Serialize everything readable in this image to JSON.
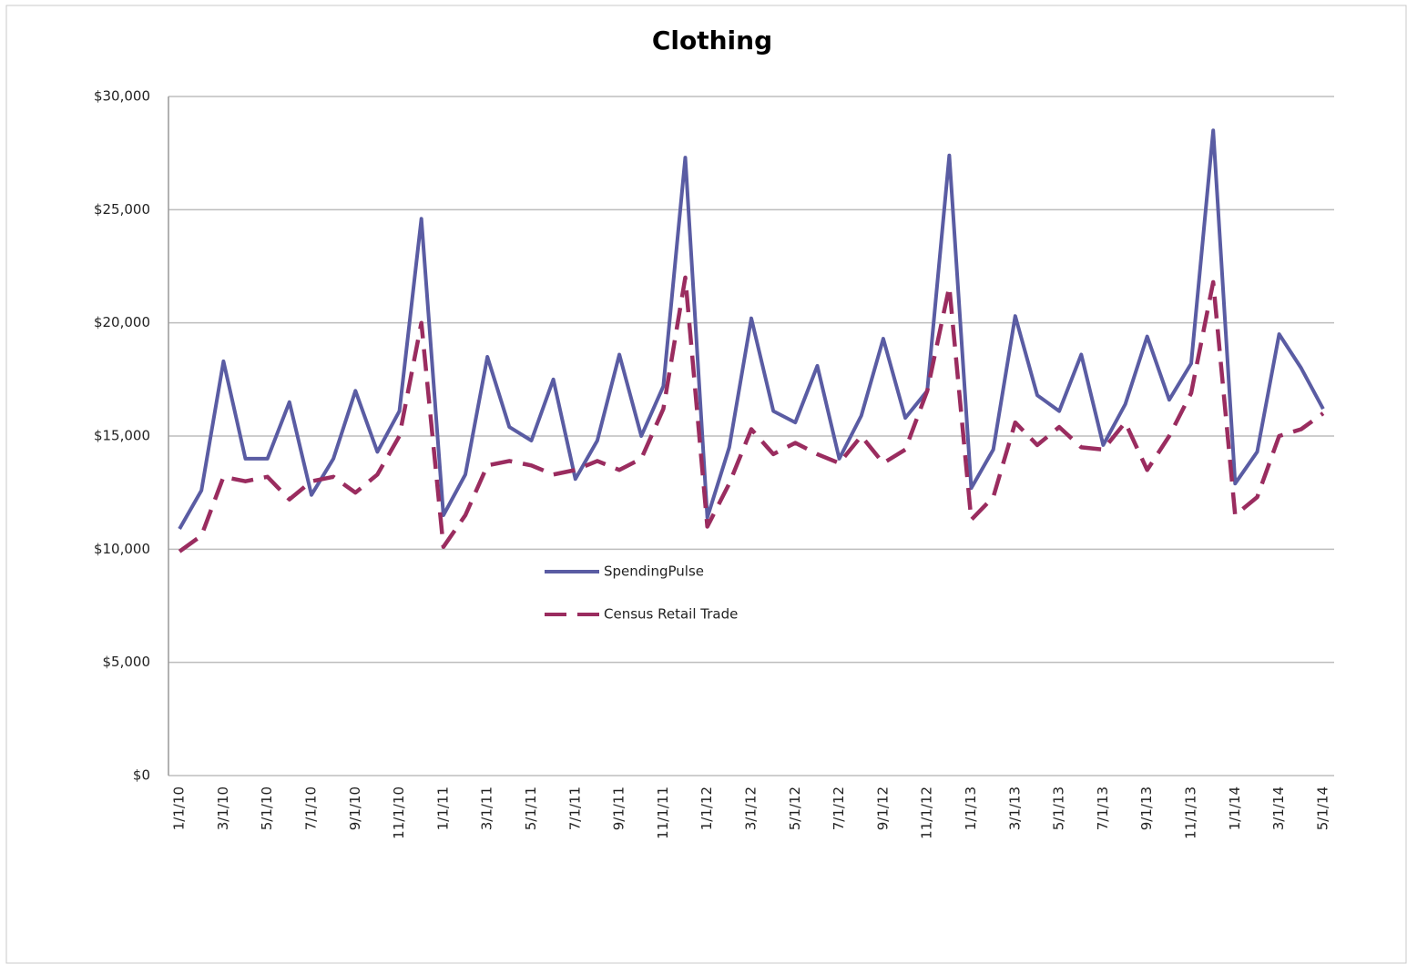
{
  "chart_data": {
    "type": "line",
    "title": "Clothing",
    "categories": [
      "1/1/10",
      null,
      "3/1/10",
      null,
      "5/1/10",
      null,
      "7/1/10",
      null,
      "9/1/10",
      null,
      "11/1/10",
      null,
      "1/1/11",
      null,
      "3/1/11",
      null,
      "5/1/11",
      null,
      "7/1/11",
      null,
      "9/1/11",
      null,
      "11/1/11",
      null,
      "1/1/12",
      null,
      "3/1/12",
      null,
      "5/1/12",
      null,
      "7/1/12",
      null,
      "9/1/12",
      null,
      "11/1/12",
      null,
      "1/1/13",
      null,
      "3/1/13",
      null,
      "5/1/13",
      null,
      "7/1/13",
      null,
      "9/1/13",
      null,
      "11/1/13",
      null,
      "1/1/14",
      null,
      "3/1/14",
      null,
      "5/1/14"
    ],
    "series": [
      {
        "name": "SpendingPulse",
        "color": "#5a5ca3",
        "dashed": false,
        "values": [
          10900,
          12600,
          18300,
          14000,
          14000,
          16500,
          12400,
          14000,
          17000,
          14300,
          16100,
          24600,
          11500,
          13300,
          18500,
          15400,
          14800,
          17500,
          13100,
          14800,
          18600,
          15000,
          17200,
          27300,
          11400,
          14500,
          20200,
          16100,
          15600,
          18100,
          14000,
          15900,
          19300,
          15800,
          17000,
          27400,
          12700,
          14400,
          20300,
          16800,
          16100,
          18600,
          14600,
          16400,
          19400,
          16600,
          18200,
          28500,
          12900,
          14300,
          19500,
          18000,
          16200
        ]
      },
      {
        "name": "Census Retail Trade",
        "color": "#9a2c5f",
        "dashed": true,
        "values": [
          9900,
          10600,
          13200,
          13000,
          13200,
          12200,
          13000,
          13200,
          12500,
          13300,
          15000,
          20000,
          10100,
          11500,
          13700,
          13900,
          13700,
          13300,
          13500,
          13900,
          13500,
          14000,
          16200,
          22000,
          11000,
          12900,
          15300,
          14200,
          14700,
          14200,
          13800,
          15000,
          13800,
          14400,
          17000,
          21600,
          11300,
          12300,
          15600,
          14600,
          15400,
          14500,
          14400,
          15600,
          13500,
          15000,
          16900,
          21800,
          11500,
          12300,
          15000,
          15300,
          16000
        ]
      }
    ],
    "ylim": [
      0,
      30000
    ],
    "yticks": [
      {
        "value": 0,
        "label": "$0"
      },
      {
        "value": 5000,
        "label": "$5,000"
      },
      {
        "value": 10000,
        "label": "$10,000"
      },
      {
        "value": 15000,
        "label": "$15,000"
      },
      {
        "value": 20000,
        "label": "$20,000"
      },
      {
        "value": 25000,
        "label": "$25,000"
      },
      {
        "value": 30000,
        "label": "$30,000"
      }
    ],
    "grid": true
  }
}
